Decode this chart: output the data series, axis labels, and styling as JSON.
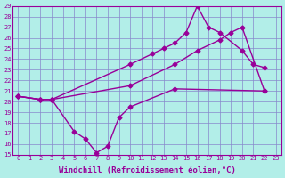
{
  "bg_color": "#b2eee8",
  "grid_color": "#8888cc",
  "line_color": "#990099",
  "marker": "D",
  "markersize": 2.5,
  "linewidth": 1.0,
  "xlabel": "Windchill (Refroidissement éolien,°C)",
  "xlabel_fontsize": 6.5,
  "ylabel_vals": [
    15,
    16,
    17,
    18,
    19,
    20,
    21,
    22,
    23,
    24,
    25,
    26,
    27,
    28,
    29
  ],
  "xlim": [
    -0.5,
    23.5
  ],
  "ylim": [
    15,
    29
  ],
  "xtick_labels": [
    "0",
    "1",
    "2",
    "3",
    "4",
    "5",
    "6",
    "7",
    "8",
    "9",
    "10",
    "11",
    "12",
    "13",
    "14",
    "15",
    "16",
    "17",
    "18",
    "19",
    "20",
    "21",
    "22",
    "23"
  ],
  "series": [
    {
      "x": [
        0,
        2,
        3,
        5,
        6,
        7,
        8,
        9,
        10,
        14,
        22
      ],
      "y": [
        20.5,
        20.2,
        20.2,
        17.2,
        16.5,
        15.2,
        15.8,
        18.5,
        19.5,
        21.2,
        21.0
      ]
    },
    {
      "x": [
        0,
        2,
        3,
        10,
        14,
        16,
        18,
        19,
        20,
        22
      ],
      "y": [
        20.5,
        20.2,
        20.2,
        21.5,
        23.5,
        24.8,
        25.8,
        26.5,
        27.0,
        21.0
      ]
    },
    {
      "x": [
        0,
        2,
        3,
        10,
        12,
        13,
        14,
        15,
        16,
        17,
        18,
        20,
        21,
        22
      ],
      "y": [
        20.5,
        20.2,
        20.2,
        23.5,
        24.5,
        25.0,
        25.5,
        26.5,
        29.0,
        27.0,
        26.5,
        24.8,
        23.5,
        23.2
      ]
    }
  ]
}
